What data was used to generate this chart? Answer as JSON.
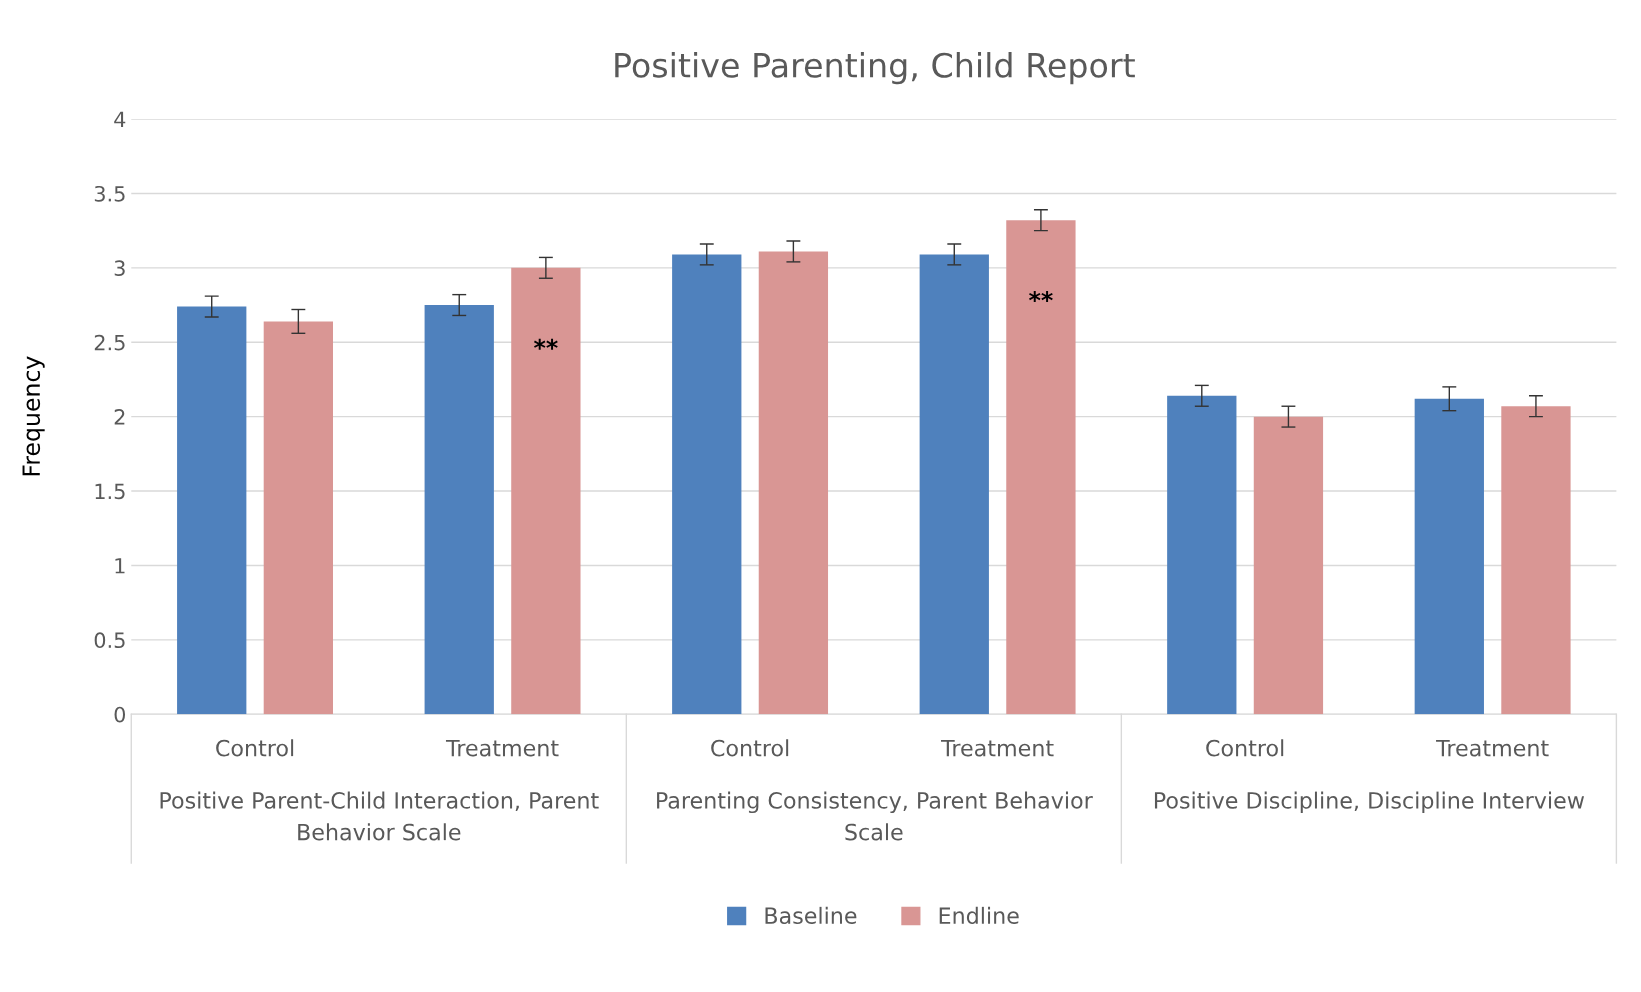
{
  "chart_data": {
    "type": "bar",
    "title": "Positive Parenting, Child Report",
    "ylabel": "Frequency",
    "categories": [
      "Control",
      "Treatment",
      "Control",
      "Treatment",
      "Control",
      "Treatment"
    ],
    "series": [
      {
        "name": "Baseline",
        "color": "#4f81bd",
        "values": [
          2.74,
          2.75,
          3.09,
          3.09,
          2.14,
          2.12
        ],
        "errors": [
          0.07,
          0.07,
          0.07,
          0.07,
          0.07,
          0.08
        ]
      },
      {
        "name": "Endline",
        "color": "#d99694",
        "values": [
          2.64,
          3.0,
          3.11,
          3.32,
          2.0,
          2.07
        ],
        "errors": [
          0.08,
          0.07,
          0.07,
          0.07,
          0.07,
          0.07
        ],
        "value_labels": [
          null,
          "**",
          null,
          "**",
          null,
          null
        ]
      }
    ],
    "annotations": [
      "Positive Parent-Child Interaction, Parent Behavior Scale",
      "Parenting Consistency, Parent Behavior Scale",
      "Positive Discipline, Discipline Interview"
    ],
    "ylim": [
      0,
      4
    ],
    "yticks": [
      0,
      0.5,
      1,
      1.5,
      2,
      2.5,
      3,
      3.5,
      4
    ],
    "grid": "y",
    "legend": "bottom"
  }
}
